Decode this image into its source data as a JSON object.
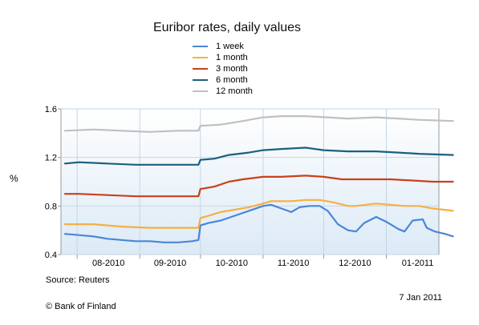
{
  "chart_data": {
    "type": "line",
    "title": "Euribor rates, daily values",
    "xlabel": "",
    "ylabel": "%",
    "ylim": [
      0.4,
      1.6
    ],
    "yticks": [
      "1.6",
      "1.2",
      "0.8",
      "0.4"
    ],
    "xlim": [
      "2010-07-24",
      "2011-01-27"
    ],
    "xticks": [
      "08-2010",
      "09-2010",
      "10-2010",
      "11-2010",
      "12-2010",
      "01-2011"
    ],
    "grid": true,
    "legend_position": "top-center",
    "series": [
      {
        "name": "1 week",
        "color": "#4a86d8",
        "points": [
          [
            "2010-07-26",
            0.57
          ],
          [
            "2010-08-02",
            0.56
          ],
          [
            "2010-08-09",
            0.55
          ],
          [
            "2010-08-16",
            0.53
          ],
          [
            "2010-08-23",
            0.52
          ],
          [
            "2010-08-30",
            0.51
          ],
          [
            "2010-09-06",
            0.51
          ],
          [
            "2010-09-13",
            0.5
          ],
          [
            "2010-09-20",
            0.5
          ],
          [
            "2010-09-27",
            0.51
          ],
          [
            "2010-09-30",
            0.52
          ],
          [
            "2010-10-01",
            0.64
          ],
          [
            "2010-10-05",
            0.66
          ],
          [
            "2010-10-11",
            0.68
          ],
          [
            "2010-10-18",
            0.72
          ],
          [
            "2010-10-25",
            0.76
          ],
          [
            "2010-11-01",
            0.8
          ],
          [
            "2010-11-05",
            0.81
          ],
          [
            "2010-11-10",
            0.78
          ],
          [
            "2010-11-15",
            0.75
          ],
          [
            "2010-11-19",
            0.79
          ],
          [
            "2010-11-24",
            0.8
          ],
          [
            "2010-11-29",
            0.8
          ],
          [
            "2010-12-03",
            0.76
          ],
          [
            "2010-12-08",
            0.65
          ],
          [
            "2010-12-13",
            0.6
          ],
          [
            "2010-12-17",
            0.59
          ],
          [
            "2010-12-21",
            0.66
          ],
          [
            "2010-12-27",
            0.71
          ],
          [
            "2011-01-01",
            0.67
          ],
          [
            "2011-01-07",
            0.61
          ],
          [
            "2011-01-10",
            0.59
          ],
          [
            "2011-01-14",
            0.68
          ],
          [
            "2011-01-19",
            0.69
          ],
          [
            "2011-01-21",
            0.62
          ],
          [
            "2011-01-25",
            0.59
          ],
          [
            "2011-01-30",
            0.57
          ],
          [
            "2011-02-03",
            0.55
          ]
        ]
      },
      {
        "name": "1 month",
        "color": "#f5b042",
        "points": [
          [
            "2010-07-26",
            0.65
          ],
          [
            "2010-08-09",
            0.65
          ],
          [
            "2010-08-16",
            0.64
          ],
          [
            "2010-08-23",
            0.63
          ],
          [
            "2010-09-06",
            0.62
          ],
          [
            "2010-09-20",
            0.62
          ],
          [
            "2010-09-30",
            0.62
          ],
          [
            "2010-10-01",
            0.7
          ],
          [
            "2010-10-05",
            0.72
          ],
          [
            "2010-10-11",
            0.75
          ],
          [
            "2010-10-18",
            0.77
          ],
          [
            "2010-10-25",
            0.79
          ],
          [
            "2010-11-01",
            0.82
          ],
          [
            "2010-11-05",
            0.84
          ],
          [
            "2010-11-15",
            0.84
          ],
          [
            "2010-11-22",
            0.85
          ],
          [
            "2010-11-29",
            0.85
          ],
          [
            "2010-12-06",
            0.83
          ],
          [
            "2010-12-13",
            0.8
          ],
          [
            "2010-12-17",
            0.8
          ],
          [
            "2010-12-27",
            0.82
          ],
          [
            "2011-01-03",
            0.81
          ],
          [
            "2011-01-10",
            0.8
          ],
          [
            "2011-01-17",
            0.8
          ],
          [
            "2011-01-24",
            0.78
          ],
          [
            "2011-02-03",
            0.76
          ]
        ]
      },
      {
        "name": "3 month",
        "color": "#c8411b",
        "points": [
          [
            "2010-07-26",
            0.9
          ],
          [
            "2010-08-02",
            0.9
          ],
          [
            "2010-08-16",
            0.89
          ],
          [
            "2010-08-30",
            0.88
          ],
          [
            "2010-09-13",
            0.88
          ],
          [
            "2010-09-30",
            0.88
          ],
          [
            "2010-10-01",
            0.94
          ],
          [
            "2010-10-08",
            0.96
          ],
          [
            "2010-10-15",
            1.0
          ],
          [
            "2010-10-22",
            1.02
          ],
          [
            "2010-11-01",
            1.04
          ],
          [
            "2010-11-10",
            1.04
          ],
          [
            "2010-11-22",
            1.05
          ],
          [
            "2010-12-01",
            1.04
          ],
          [
            "2010-12-10",
            1.02
          ],
          [
            "2010-12-20",
            1.02
          ],
          [
            "2011-01-03",
            1.02
          ],
          [
            "2011-01-14",
            1.01
          ],
          [
            "2011-01-24",
            1.0
          ],
          [
            "2011-02-03",
            1.0
          ]
        ]
      },
      {
        "name": "6 month",
        "color": "#1b5f7f",
        "points": [
          [
            "2010-07-26",
            1.15
          ],
          [
            "2010-08-02",
            1.16
          ],
          [
            "2010-08-16",
            1.15
          ],
          [
            "2010-08-30",
            1.14
          ],
          [
            "2010-09-13",
            1.14
          ],
          [
            "2010-09-30",
            1.14
          ],
          [
            "2010-10-01",
            1.18
          ],
          [
            "2010-10-08",
            1.19
          ],
          [
            "2010-10-15",
            1.22
          ],
          [
            "2010-10-25",
            1.24
          ],
          [
            "2010-11-01",
            1.26
          ],
          [
            "2010-11-10",
            1.27
          ],
          [
            "2010-11-22",
            1.28
          ],
          [
            "2010-12-01",
            1.26
          ],
          [
            "2010-12-13",
            1.25
          ],
          [
            "2010-12-27",
            1.25
          ],
          [
            "2011-01-07",
            1.24
          ],
          [
            "2011-01-17",
            1.23
          ],
          [
            "2011-02-03",
            1.22
          ]
        ]
      },
      {
        "name": "12 month",
        "color": "#c0c0c0",
        "points": [
          [
            "2010-07-26",
            1.42
          ],
          [
            "2010-08-09",
            1.43
          ],
          [
            "2010-08-23",
            1.42
          ],
          [
            "2010-09-06",
            1.41
          ],
          [
            "2010-09-20",
            1.42
          ],
          [
            "2010-09-30",
            1.42
          ],
          [
            "2010-10-01",
            1.46
          ],
          [
            "2010-10-11",
            1.47
          ],
          [
            "2010-10-22",
            1.5
          ],
          [
            "2010-11-01",
            1.53
          ],
          [
            "2010-11-10",
            1.54
          ],
          [
            "2010-11-22",
            1.54
          ],
          [
            "2010-12-03",
            1.53
          ],
          [
            "2010-12-13",
            1.52
          ],
          [
            "2010-12-27",
            1.53
          ],
          [
            "2011-01-07",
            1.52
          ],
          [
            "2011-01-17",
            1.51
          ],
          [
            "2011-02-03",
            1.5
          ]
        ]
      }
    ]
  },
  "footer": {
    "source": "Source: Reuters",
    "copyright": "© Bank of Finland",
    "date": "7 Jan 2011"
  }
}
